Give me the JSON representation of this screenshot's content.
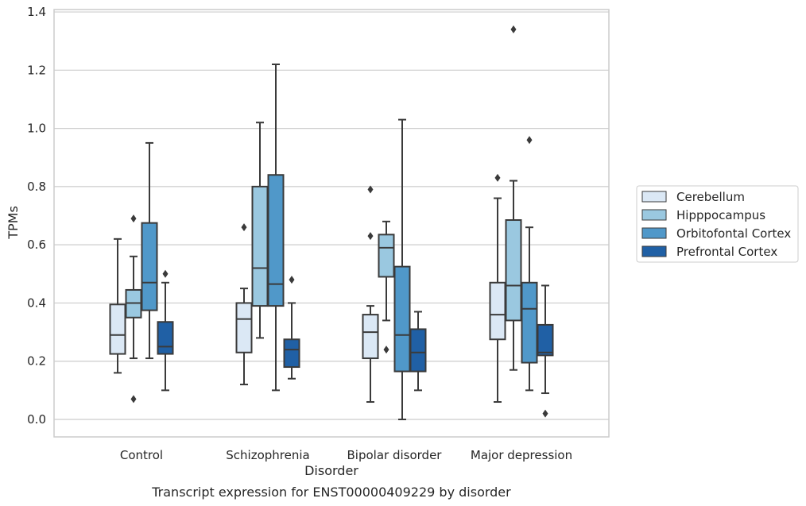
{
  "chart_data": {
    "type": "boxplot",
    "title": "Transcript expression for ENST00000409229 by disorder",
    "xlabel": "Disorder",
    "ylabel": "TPMs",
    "ylim": [
      -0.06,
      1.41
    ],
    "yticks": [
      "0.0",
      "0.2",
      "0.4",
      "0.6",
      "0.8",
      "1.0",
      "1.2",
      "1.4"
    ],
    "grid": true,
    "legend_position": "right",
    "categories": [
      "Control",
      "Schizophrenia",
      "Bipolar disorder",
      "Major depression"
    ],
    "series": [
      {
        "name": "Cerebellum",
        "color": "#dbe8f5",
        "boxes": [
          {
            "whislo": 0.16,
            "q1": 0.225,
            "med": 0.29,
            "q3": 0.395,
            "whishi": 0.62,
            "fliers": []
          },
          {
            "whislo": 0.12,
            "q1": 0.23,
            "med": 0.345,
            "q3": 0.4,
            "whishi": 0.45,
            "fliers": [
              0.66
            ]
          },
          {
            "whislo": 0.06,
            "q1": 0.21,
            "med": 0.3,
            "q3": 0.36,
            "whishi": 0.39,
            "fliers": [
              0.63,
              0.79
            ]
          },
          {
            "whislo": 0.06,
            "q1": 0.275,
            "med": 0.36,
            "q3": 0.47,
            "whishi": 0.76,
            "fliers": [
              0.83
            ]
          }
        ]
      },
      {
        "name": "Hipppocampus",
        "color": "#9ac8e0",
        "boxes": [
          {
            "whislo": 0.21,
            "q1": 0.35,
            "med": 0.4,
            "q3": 0.445,
            "whishi": 0.56,
            "fliers": [
              0.07,
              0.69
            ]
          },
          {
            "whislo": 0.28,
            "q1": 0.39,
            "med": 0.52,
            "q3": 0.8,
            "whishi": 1.02,
            "fliers": []
          },
          {
            "whislo": 0.34,
            "q1": 0.49,
            "med": 0.59,
            "q3": 0.635,
            "whishi": 0.68,
            "fliers": [
              0.24
            ]
          },
          {
            "whislo": 0.17,
            "q1": 0.34,
            "med": 0.46,
            "q3": 0.685,
            "whishi": 0.82,
            "fliers": [
              1.34
            ]
          }
        ]
      },
      {
        "name": "Orbitofontal Cortex",
        "color": "#5098c9",
        "boxes": [
          {
            "whislo": 0.21,
            "q1": 0.375,
            "med": 0.47,
            "q3": 0.675,
            "whishi": 0.95,
            "fliers": []
          },
          {
            "whislo": 0.1,
            "q1": 0.39,
            "med": 0.465,
            "q3": 0.84,
            "whishi": 1.22,
            "fliers": []
          },
          {
            "whislo": 0.0,
            "q1": 0.165,
            "med": 0.29,
            "q3": 0.525,
            "whishi": 1.03,
            "fliers": []
          },
          {
            "whislo": 0.1,
            "q1": 0.195,
            "med": 0.38,
            "q3": 0.47,
            "whishi": 0.66,
            "fliers": [
              0.96
            ]
          }
        ]
      },
      {
        "name": "Prefrontal Cortex",
        "color": "#2060a5",
        "boxes": [
          {
            "whislo": 0.1,
            "q1": 0.225,
            "med": 0.25,
            "q3": 0.335,
            "whishi": 0.47,
            "fliers": [
              0.5
            ]
          },
          {
            "whislo": 0.14,
            "q1": 0.18,
            "med": 0.24,
            "q3": 0.275,
            "whishi": 0.4,
            "fliers": [
              0.48
            ]
          },
          {
            "whislo": 0.1,
            "q1": 0.165,
            "med": 0.23,
            "q3": 0.31,
            "whishi": 0.37,
            "fliers": []
          },
          {
            "whislo": 0.09,
            "q1": 0.22,
            "med": 0.23,
            "q3": 0.325,
            "whishi": 0.46,
            "fliers": [
              0.02
            ]
          }
        ]
      }
    ]
  }
}
